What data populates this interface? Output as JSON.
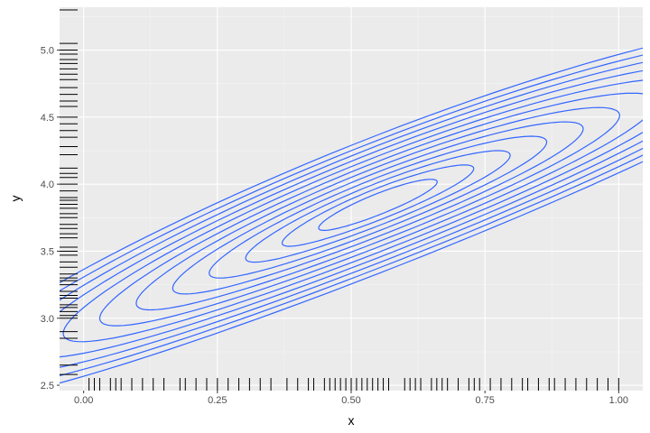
{
  "chart_data": {
    "type": "contour",
    "title": "",
    "xlabel": "x",
    "ylabel": "y",
    "xlim": [
      -0.045,
      1.045
    ],
    "ylim": [
      2.46,
      5.32
    ],
    "x_ticks": [
      0.0,
      0.25,
      0.5,
      0.75,
      1.0
    ],
    "x_tick_labels": [
      "0.00",
      "0.25",
      "0.50",
      "0.75",
      "1.00"
    ],
    "y_ticks": [
      2.5,
      3.0,
      3.5,
      4.0,
      4.5,
      5.0
    ],
    "y_tick_labels": [
      "2.5",
      "3.0",
      "3.5",
      "4.0",
      "4.5",
      "5.0"
    ],
    "grid": true,
    "legend": "none",
    "colors": {
      "panel": "#EBEBEB",
      "grid_major": "#FFFFFF",
      "grid_minor": "#F5F5F5",
      "contour": "#3366FF",
      "rug": "#000000",
      "tick": "#333333"
    },
    "density_center": [
      0.55,
      3.85
    ],
    "contour_levels": 12,
    "rug_x": [
      0.01,
      0.02,
      0.03,
      0.05,
      0.06,
      0.07,
      0.09,
      0.11,
      0.13,
      0.15,
      0.18,
      0.19,
      0.21,
      0.23,
      0.25,
      0.27,
      0.29,
      0.31,
      0.33,
      0.35,
      0.38,
      0.4,
      0.42,
      0.43,
      0.45,
      0.46,
      0.47,
      0.48,
      0.49,
      0.5,
      0.51,
      0.52,
      0.53,
      0.54,
      0.55,
      0.56,
      0.57,
      0.6,
      0.61,
      0.62,
      0.63,
      0.65,
      0.66,
      0.67,
      0.68,
      0.7,
      0.72,
      0.73,
      0.74,
      0.76,
      0.78,
      0.8,
      0.82,
      0.83,
      0.85,
      0.87,
      0.88,
      0.9,
      0.92,
      0.94,
      0.96,
      0.98,
      1.0
    ],
    "rug_y": [
      2.58,
      2.65,
      2.85,
      2.9,
      3.0,
      3.02,
      3.05,
      3.08,
      3.1,
      3.15,
      3.17,
      3.2,
      3.25,
      3.28,
      3.3,
      3.33,
      3.38,
      3.42,
      3.47,
      3.5,
      3.53,
      3.6,
      3.63,
      3.67,
      3.7,
      3.75,
      3.78,
      3.82,
      3.85,
      3.88,
      3.9,
      3.95,
      4.0,
      4.05,
      4.08,
      4.12,
      4.22,
      4.28,
      4.35,
      4.4,
      4.45,
      4.5,
      4.58,
      4.62,
      4.67,
      4.72,
      4.78,
      4.82,
      4.86,
      4.9,
      4.93,
      4.97,
      5.0,
      5.05,
      5.3
    ]
  }
}
